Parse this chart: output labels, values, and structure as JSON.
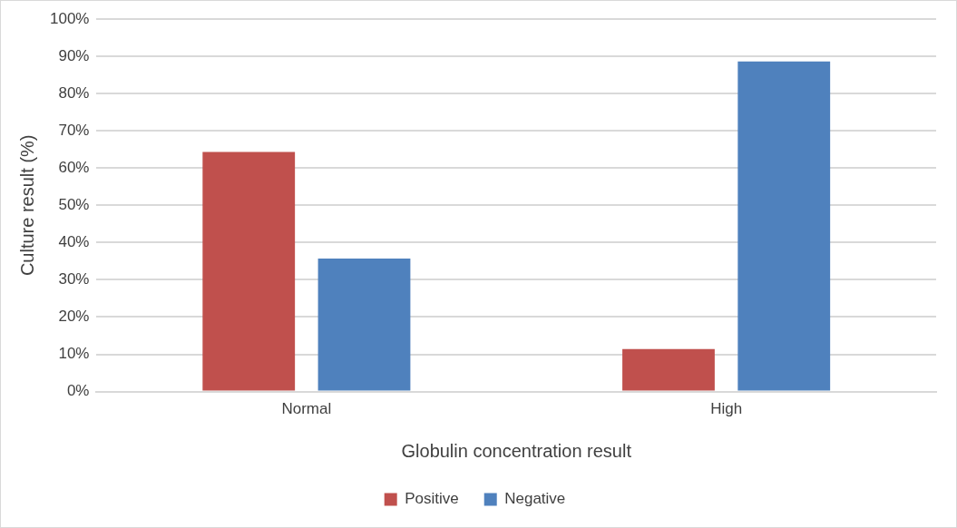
{
  "chart_data": {
    "type": "bar",
    "categories": [
      "Normal",
      "High"
    ],
    "xlabel": "Globulin concentration result",
    "ylabel": "Culture result (%)",
    "series": [
      {
        "name": "Positive",
        "color": "#c0504d",
        "values": [
          64.3,
          11.4
        ]
      },
      {
        "name": "Negative",
        "color": "#4f81bd",
        "values": [
          35.7,
          88.6
        ]
      }
    ],
    "ylim": [
      0,
      100
    ],
    "yticks": [
      {
        "value": 0,
        "label": "0%"
      },
      {
        "value": 10,
        "label": "10%"
      },
      {
        "value": 20,
        "label": "20%"
      },
      {
        "value": 30,
        "label": "30%"
      },
      {
        "value": 40,
        "label": "40%"
      },
      {
        "value": 50,
        "label": "50%"
      },
      {
        "value": 60,
        "label": "60%"
      },
      {
        "value": 70,
        "label": "70%"
      },
      {
        "value": 80,
        "label": "80%"
      },
      {
        "value": 90,
        "label": "90%"
      },
      {
        "value": 100,
        "label": "100%"
      }
    ],
    "grid": "y",
    "legend": "bottom"
  }
}
